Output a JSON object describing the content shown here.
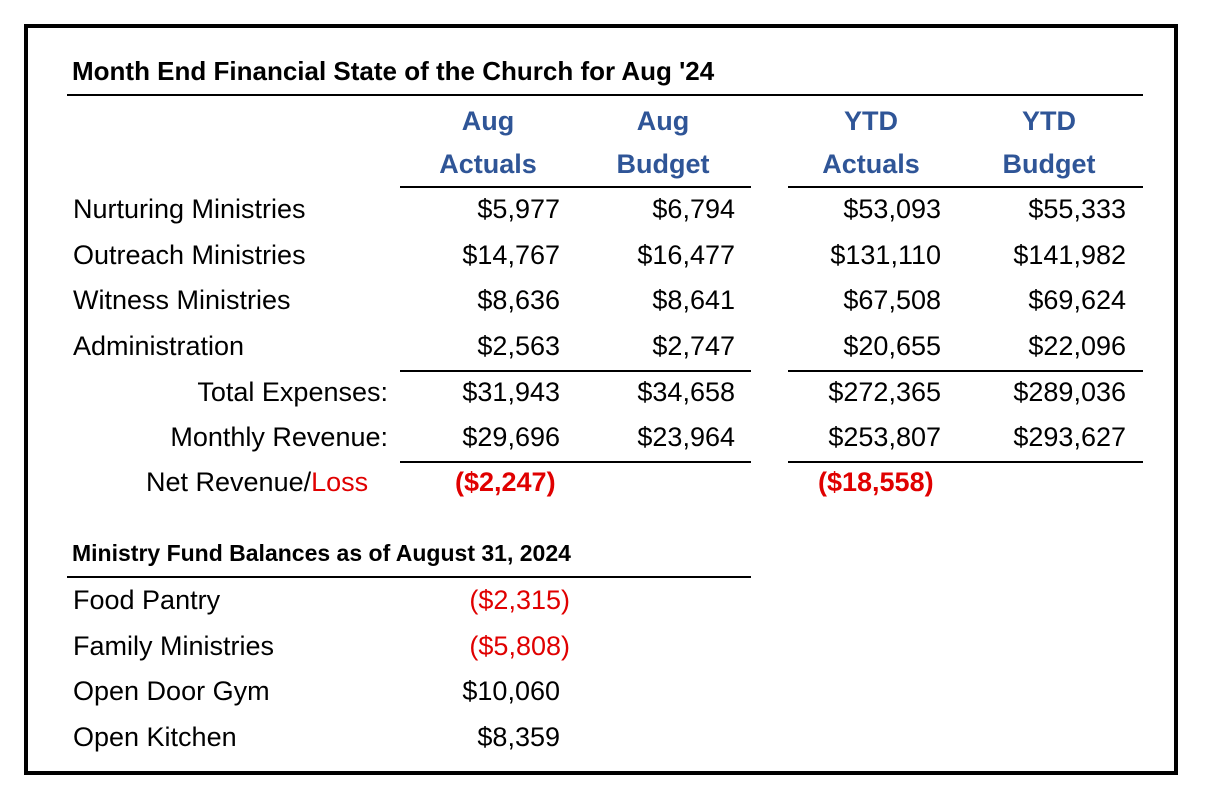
{
  "title": "Month End Financial State of the Church for Aug '24",
  "columns": [
    {
      "line1": "Aug",
      "line2": "Actuals"
    },
    {
      "line1": "Aug",
      "line2": "Budget"
    },
    {
      "line1": "YTD",
      "line2": "Actuals"
    },
    {
      "line1": "YTD",
      "line2": "Budget"
    }
  ],
  "rows": [
    {
      "label": "Nurturing Ministries",
      "values": [
        "$5,977",
        "$6,794",
        "$53,093",
        "$55,333"
      ]
    },
    {
      "label": "Outreach Ministries",
      "values": [
        "$14,767",
        "$16,477",
        "$131,110",
        "$141,982"
      ]
    },
    {
      "label": "Witness Ministries",
      "values": [
        "$8,636",
        "$8,641",
        "$67,508",
        "$69,624"
      ]
    },
    {
      "label": "Administration",
      "values": [
        "$2,563",
        "$2,747",
        "$20,655",
        "$22,096"
      ]
    }
  ],
  "totals": {
    "expenses_label": "Total Expenses:",
    "expenses": [
      "$31,943",
      "$34,658",
      "$272,365",
      "$289,036"
    ],
    "revenue_label": "Monthly Revenue:",
    "revenue": [
      "$29,696",
      "$23,964",
      "$253,807",
      "$293,627"
    ],
    "net_label_a": "Net Revenue/",
    "net_label_b": "Loss",
    "net_aug": "($2,247)",
    "net_ytd": "($18,558)"
  },
  "fund_title": "Ministry Fund Balances as of August 31, 2024",
  "funds": [
    {
      "label": "Food Pantry",
      "value": "($2,315)"
    },
    {
      "label": "Family Ministries",
      "value": "($5,808)"
    },
    {
      "label": "Open Door Gym",
      "value": "$10,060"
    },
    {
      "label": "Open Kitchen",
      "value": "$8,359"
    }
  ],
  "colors": {
    "header": "#2f5597",
    "negative": "#e00000"
  }
}
